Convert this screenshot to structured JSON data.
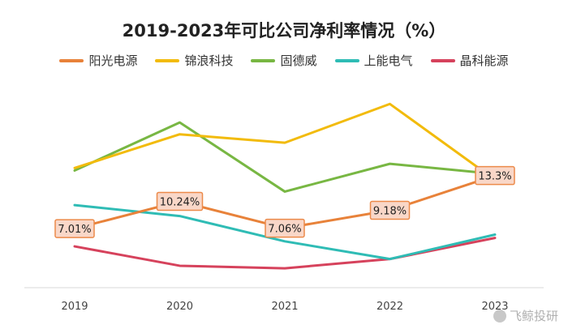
{
  "chart_data": {
    "type": "line",
    "title": "2019-2023年可比公司净利率情况（%）",
    "categories": [
      "2019",
      "2020",
      "2021",
      "2022",
      "2023"
    ],
    "xlabel": "",
    "ylabel": "",
    "ylim": [
      0,
      25
    ],
    "grid": false,
    "legend_position": "top",
    "series": [
      {
        "name": "阳光电源",
        "color": "#e8823a",
        "values": [
          7.01,
          10.24,
          7.06,
          9.18,
          13.3
        ],
        "labels": [
          "7.01%",
          "10.24%",
          "7.06%",
          "9.18%",
          "13.3%"
        ]
      },
      {
        "name": "锦浪科技",
        "color": "#f2bb0c",
        "values": [
          14.2,
          18.2,
          17.2,
          21.8,
          12.8
        ]
      },
      {
        "name": "固德威",
        "color": "#78b743",
        "values": [
          13.9,
          19.6,
          11.4,
          14.7,
          13.5
        ]
      },
      {
        "name": "上能电气",
        "color": "#2fbcb5",
        "values": [
          9.8,
          8.5,
          5.5,
          3.4,
          6.3
        ]
      },
      {
        "name": "晶科能源",
        "color": "#d6425c",
        "values": [
          4.9,
          2.6,
          2.3,
          3.4,
          5.9
        ]
      }
    ]
  },
  "watermark": {
    "text": "飞鲸投研"
  }
}
